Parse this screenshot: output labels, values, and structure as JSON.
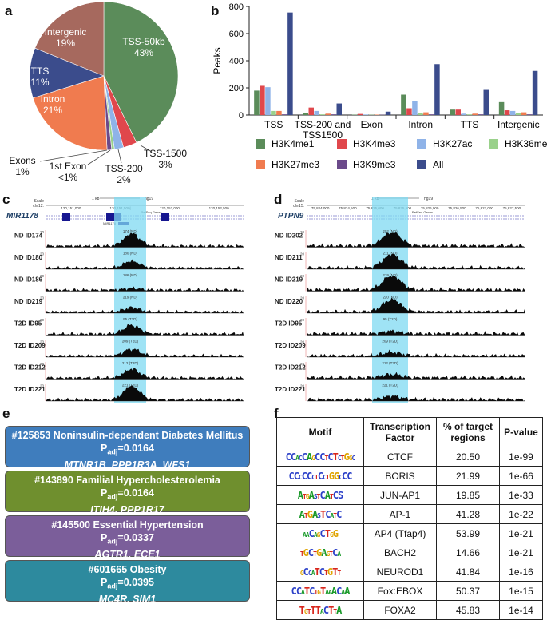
{
  "panels": {
    "a": "a",
    "b": "b",
    "c": "c",
    "d": "d",
    "e": "e",
    "f": "f"
  },
  "chart_data": [
    {
      "type": "pie",
      "slices": [
        {
          "label": "TSS-50kb",
          "pct_label": "43%",
          "value": 43,
          "color": "#5b8c5a"
        },
        {
          "label": "TSS-1500",
          "pct_label": "3%",
          "value": 3,
          "color": "#e0474c"
        },
        {
          "label": "TSS-200",
          "pct_label": "2%",
          "value": 2,
          "color": "#8fb3e8"
        },
        {
          "label": "1st Exon",
          "pct_label": "<1%",
          "value": 0.6,
          "color": "#9ad18b"
        },
        {
          "label": "Exons",
          "pct_label": "1%",
          "value": 1,
          "color": "#6b4a8a"
        },
        {
          "label": "Intron",
          "pct_label": "21%",
          "value": 21,
          "color": "#f07b4f"
        },
        {
          "label": "TTS",
          "pct_label": "11%",
          "value": 11,
          "color": "#3b4c8c"
        },
        {
          "label": "Intergenic",
          "pct_label": "19%",
          "value": 19,
          "color": "#a6695e"
        }
      ]
    },
    {
      "type": "bar",
      "ylabel": "Peaks",
      "ylim": [
        0,
        800
      ],
      "yticks": [
        0,
        200,
        400,
        600,
        800
      ],
      "categories": [
        "TSS",
        "TSS-200 and TSS1500",
        "Exon",
        "Intron",
        "TTS",
        "Intergenic"
      ],
      "category_lines": [
        [
          "TSS"
        ],
        [
          "TSS-200 and",
          "TSS1500"
        ],
        [
          "Exon"
        ],
        [
          "Intron"
        ],
        [
          "TTS"
        ],
        [
          "Intergenic"
        ]
      ],
      "series": [
        {
          "name": "H3K4me1",
          "color": "#5b8c5a",
          "values": [
            180,
            15,
            3,
            150,
            40,
            95
          ]
        },
        {
          "name": "H3K4me3",
          "color": "#e0474c",
          "values": [
            215,
            55,
            8,
            50,
            40,
            35
          ]
        },
        {
          "name": "H3K27ac",
          "color": "#8fb3e8",
          "values": [
            205,
            30,
            4,
            100,
            10,
            30
          ]
        },
        {
          "name": "H3K36me3",
          "color": "#9ad18b",
          "values": [
            30,
            5,
            2,
            15,
            5,
            15
          ]
        },
        {
          "name": "H3K27me3",
          "color": "#f07b4f",
          "values": [
            30,
            10,
            3,
            20,
            10,
            20
          ]
        },
        {
          "name": "H3K9me3",
          "color": "#6b4a8a",
          "values": [
            5,
            5,
            2,
            5,
            5,
            5
          ]
        },
        {
          "name": "All",
          "color": "#3b4c8c",
          "values": [
            755,
            85,
            25,
            375,
            185,
            325
          ]
        }
      ]
    }
  ],
  "tracks": {
    "c": {
      "gene": "MIR1178",
      "scale": "Scale",
      "chr": "chr12:",
      "assembly": "hg19",
      "kb": "1 kb",
      "coords": [
        "120,151,000",
        "120,151,500|",
        "120,152,000",
        "120,152,500"
      ],
      "refseq": "RefSeq Genes",
      "sub_gene": "MIR1178",
      "ymax": "20",
      "samples": [
        {
          "name": "ND ID174",
          "tag": "174 (ND)"
        },
        {
          "name": "ND ID180",
          "tag": "180 (ND)"
        },
        {
          "name": "ND ID186",
          "tag": "186 (ND)"
        },
        {
          "name": "ND ID219",
          "tag": "219 (ND)"
        },
        {
          "name": "T2D ID95",
          "tag": "95 (T2D)"
        },
        {
          "name": "T2D ID209",
          "tag": "209 (T2D)"
        },
        {
          "name": "T2D ID212",
          "tag": "212 (T2D)"
        },
        {
          "name": "T2D ID221",
          "tag": "221 (T2D)"
        }
      ]
    },
    "d": {
      "gene": "PTPN9",
      "scale": "Scale",
      "chr": "chr15:",
      "assembly": "hg19",
      "kb": "1 kb",
      "coords": [
        "75,824,000",
        "75,824,500",
        "75,825,000",
        "75,825,500",
        "75,826,000",
        "75,826,500",
        "75,827,000",
        "75,827,500"
      ],
      "refseq": "RefSeq Genes",
      "ymax": "20",
      "samples": [
        {
          "name": "ND ID202",
          "tag": "202 (ND)"
        },
        {
          "name": "ND ID211",
          "tag": "211 (ND)"
        },
        {
          "name": "ND ID219",
          "tag": "219 (ND)"
        },
        {
          "name": "ND ID220",
          "tag": "220 (ND)"
        },
        {
          "name": "T2D ID95",
          "tag": "95 (T2D)"
        },
        {
          "name": "T2D ID209",
          "tag": "209 (T2D)"
        },
        {
          "name": "T2D ID212",
          "tag": "212 (T2D)"
        },
        {
          "name": "T2D ID221",
          "tag": "221 (T2D)"
        }
      ]
    }
  },
  "diseases": [
    {
      "title": "#125853 Noninsulin-dependent Diabetes Mellitus",
      "p_prefix": "P",
      "p_sub": "adj",
      "p_val": "=0.0164",
      "genes": "MTNR1B, PPP1R3A, WFS1",
      "color": "#3f7dbd"
    },
    {
      "title": "#143890 Familial Hypercholesterolemia",
      "p_prefix": "P",
      "p_sub": "adj",
      "p_val": "=0.0164",
      "genes": "ITIH4, PPP1R17",
      "color": "#6f8f2e"
    },
    {
      "title": "#145500 Essential Hypertension",
      "p_prefix": "P",
      "p_sub": "adj",
      "p_val": "=0.0337",
      "genes": "AGTR1, ECE1",
      "color": "#7b5e9a"
    },
    {
      "title": "#601665 Obesity",
      "p_prefix": "P",
      "p_sub": "adj",
      "p_val": "=0.0395",
      "genes": "MC4R, SIM1",
      "color": "#2d8a9e"
    }
  ],
  "motif_table": {
    "headers": [
      "Motif",
      "Transcription Factor",
      "% of target regions",
      "P-value"
    ],
    "rows": [
      {
        "logo": "CCACCAGCCTCTCTGGC",
        "tf": "CTCF",
        "pct": "20.50",
        "p": "1e-99"
      },
      {
        "logo": "CCCCCCTCCTGGCCC",
        "tf": "BORIS",
        "pct": "21.99",
        "p": "1e-66"
      },
      {
        "logo": "ATGASTCATCS",
        "tf": "JUN-AP1",
        "pct": "19.85",
        "p": "1e-33"
      },
      {
        "logo": "ATGASTCATC",
        "tf": "AP-1",
        "pct": "41.28",
        "p": "1e-22"
      },
      {
        "logo": "AACAGCTGG",
        "tf": "AP4 (Tfap4)",
        "pct": "53.99",
        "p": "1e-21"
      },
      {
        "logo": "TGCTGAGTCA",
        "tf": "BACH2",
        "pct": "14.66",
        "p": "1e-21"
      },
      {
        "logo": "GCCATCTGTT",
        "tf": "NEUROD1",
        "pct": "41.84",
        "p": "1e-16"
      },
      {
        "logo": "CCATCTGTAAACAA",
        "tf": "Fox:EBOX",
        "pct": "50.37",
        "p": "1e-15"
      },
      {
        "logo": "TGTTTACTTA",
        "tf": "FOXA2",
        "pct": "45.83",
        "p": "1e-14"
      }
    ]
  }
}
